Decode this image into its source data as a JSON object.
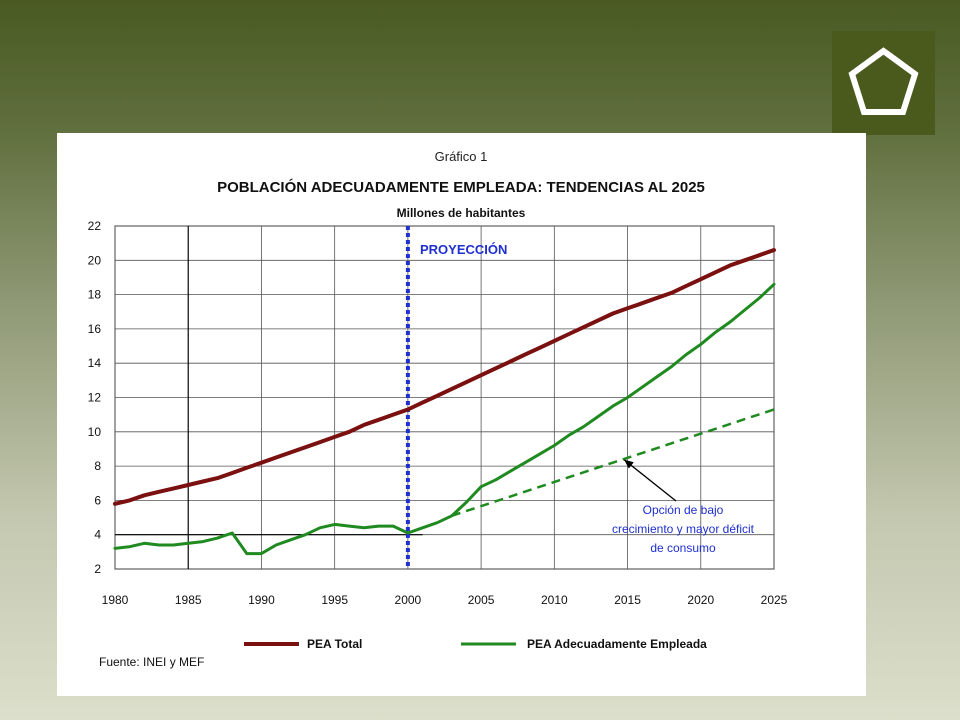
{
  "slide": {
    "logo_icon": "pentagon-logo-icon",
    "colors": {
      "background_top": "#4a5a22",
      "background_bottom": "#dcdfcb",
      "logo_bg": "#4a5a1c"
    }
  },
  "chart_data": {
    "type": "line",
    "figure_label": "Gráfico 1",
    "title": "POBLACIÓN ADECUADAMENTE EMPLEADA: TENDENCIAS AL 2025",
    "subtitle": "Millones de habitantes",
    "xlabel": "",
    "ylabel": "",
    "xlim": [
      1980,
      2025
    ],
    "ylim": [
      2,
      22
    ],
    "x_ticks": [
      "1980",
      "1985",
      "1990",
      "1995",
      "2000",
      "2005",
      "2010",
      "2015",
      "2020",
      "2025"
    ],
    "y_ticks": [
      "2",
      "4",
      "6",
      "8",
      "10",
      "12",
      "14",
      "16",
      "18",
      "20",
      "22"
    ],
    "grid": true,
    "projection_year": 2000,
    "projection_label": "PROYECCIÓN",
    "annotation": {
      "lines": [
        "Opción de bajo",
        "crecimiento y mayor déficit",
        "de consumo"
      ],
      "arrow_to": [
        2014.5,
        8.6
      ]
    },
    "source": "Fuente: INEI y MEF",
    "legend_position": "bottom",
    "series": [
      {
        "name": "PEA Total",
        "color": "#7b1010",
        "style": "solid",
        "points": [
          [
            1980,
            5.8
          ],
          [
            1981,
            6.0
          ],
          [
            1982,
            6.3
          ],
          [
            1983,
            6.5
          ],
          [
            1984,
            6.7
          ],
          [
            1985,
            6.9
          ],
          [
            1986,
            7.1
          ],
          [
            1987,
            7.3
          ],
          [
            1988,
            7.6
          ],
          [
            1989,
            7.9
          ],
          [
            1990,
            8.2
          ],
          [
            1991,
            8.5
          ],
          [
            1992,
            8.8
          ],
          [
            1993,
            9.1
          ],
          [
            1994,
            9.4
          ],
          [
            1995,
            9.7
          ],
          [
            1996,
            10.0
          ],
          [
            1997,
            10.4
          ],
          [
            1998,
            10.7
          ],
          [
            1999,
            11.0
          ],
          [
            2000,
            11.3
          ],
          [
            2001,
            11.7
          ],
          [
            2002,
            12.1
          ],
          [
            2003,
            12.5
          ],
          [
            2004,
            12.9
          ],
          [
            2005,
            13.3
          ],
          [
            2006,
            13.7
          ],
          [
            2007,
            14.1
          ],
          [
            2008,
            14.5
          ],
          [
            2009,
            14.9
          ],
          [
            2010,
            15.3
          ],
          [
            2011,
            15.7
          ],
          [
            2012,
            16.1
          ],
          [
            2013,
            16.5
          ],
          [
            2014,
            16.9
          ],
          [
            2015,
            17.2
          ],
          [
            2016,
            17.5
          ],
          [
            2017,
            17.8
          ],
          [
            2018,
            18.1
          ],
          [
            2019,
            18.5
          ],
          [
            2020,
            18.9
          ],
          [
            2021,
            19.3
          ],
          [
            2022,
            19.7
          ],
          [
            2023,
            20.0
          ],
          [
            2024,
            20.3
          ],
          [
            2025,
            20.6
          ]
        ]
      },
      {
        "name": "PEA Adecuadamente Empleada",
        "color": "#1f8a1f",
        "style": "solid",
        "points": [
          [
            1980,
            3.2
          ],
          [
            1981,
            3.3
          ],
          [
            1982,
            3.5
          ],
          [
            1983,
            3.4
          ],
          [
            1984,
            3.4
          ],
          [
            1985,
            3.5
          ],
          [
            1986,
            3.6
          ],
          [
            1987,
            3.8
          ],
          [
            1988,
            4.1
          ],
          [
            1988.5,
            3.5
          ],
          [
            1989,
            2.9
          ],
          [
            1990,
            2.9
          ],
          [
            1991,
            3.4
          ],
          [
            1992,
            3.7
          ],
          [
            1993,
            4.0
          ],
          [
            1994,
            4.4
          ],
          [
            1995,
            4.6
          ],
          [
            1996,
            4.5
          ],
          [
            1997,
            4.4
          ],
          [
            1998,
            4.5
          ],
          [
            1999,
            4.5
          ],
          [
            2000,
            4.1
          ],
          [
            2001,
            4.4
          ],
          [
            2002,
            4.7
          ],
          [
            2003,
            5.1
          ],
          [
            2004,
            5.9
          ],
          [
            2005,
            6.8
          ],
          [
            2006,
            7.2
          ],
          [
            2007,
            7.7
          ],
          [
            2008,
            8.2
          ],
          [
            2009,
            8.7
          ],
          [
            2010,
            9.2
          ],
          [
            2011,
            9.8
          ],
          [
            2012,
            10.3
          ],
          [
            2013,
            10.9
          ],
          [
            2014,
            11.5
          ],
          [
            2015,
            12.0
          ],
          [
            2016,
            12.6
          ],
          [
            2017,
            13.2
          ],
          [
            2018,
            13.8
          ],
          [
            2019,
            14.5
          ],
          [
            2020,
            15.1
          ],
          [
            2021,
            15.8
          ],
          [
            2022,
            16.4
          ],
          [
            2023,
            17.1
          ],
          [
            2024,
            17.8
          ],
          [
            2025,
            18.6
          ]
        ]
      },
      {
        "name": "",
        "color": "#1f8a1f",
        "style": "dashed",
        "points": [
          [
            2003,
            5.1
          ],
          [
            2025,
            11.3
          ]
        ]
      }
    ],
    "reference_line": {
      "y": 4,
      "from": 1980,
      "to": 2001,
      "color": "#000000"
    }
  }
}
